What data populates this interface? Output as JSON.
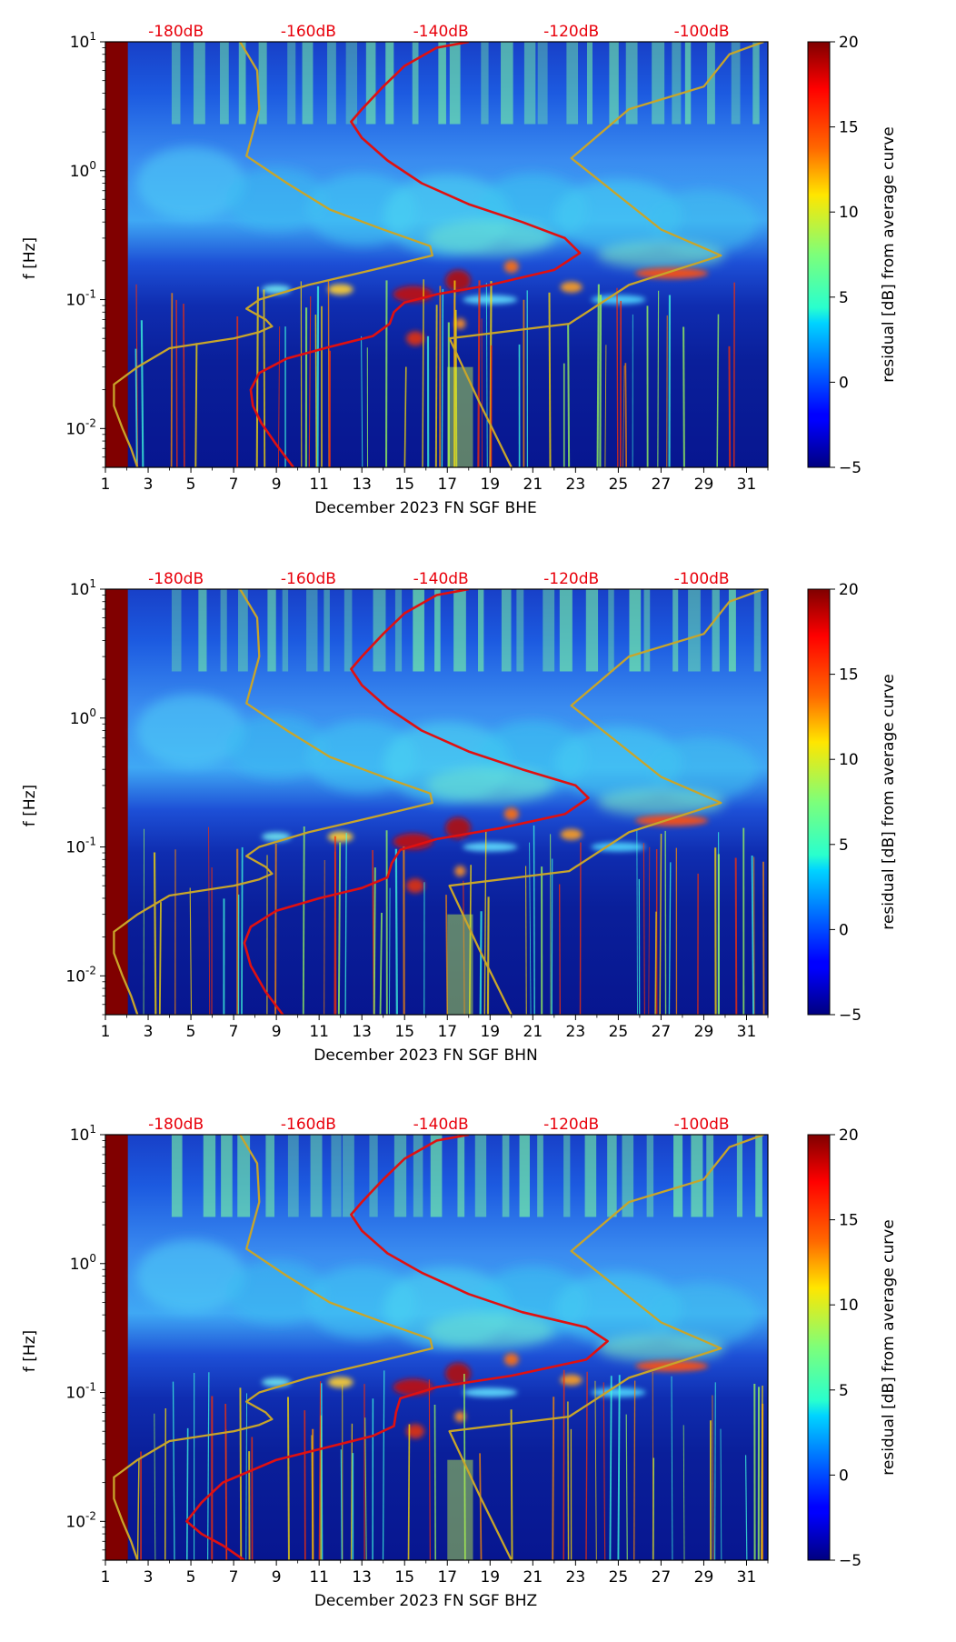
{
  "figure": {
    "xlim": [
      1,
      32
    ],
    "x_ticks": [
      1,
      3,
      5,
      7,
      9,
      11,
      13,
      15,
      17,
      19,
      21,
      23,
      25,
      27,
      29,
      31
    ],
    "y_ticks": [
      {
        "exp": "-2",
        "value": 0.01
      },
      {
        "exp": "-1",
        "value": 0.1
      },
      {
        "exp": "0",
        "value": 1
      },
      {
        "exp": "1",
        "value": 10
      }
    ],
    "y_tick_base": "10",
    "ylim": [
      0.005,
      10
    ],
    "db_labels": [
      "-180dB",
      "-160dB",
      "-140dB",
      "-120dB",
      "-100dB"
    ],
    "db_label_colour": "#e8000b"
  },
  "chart_data": [
    {
      "type": "heatmap",
      "title": "",
      "xlabel": "December 2023 FN SGF  BHE",
      "ylabel": "f [Hz]",
      "colorbar_label": "residual [dB] from average curve",
      "colorbar_range": [
        -5,
        20
      ],
      "colorbar_ticks": [
        "−5",
        "0",
        "5",
        "10",
        "15",
        "20"
      ],
      "series": [
        {
          "name": "median PSD (red)",
          "colour": "#e01010",
          "points": [
            [
              9.8,
              0.005
            ],
            [
              9,
              0.0075
            ],
            [
              8.3,
              0.011
            ],
            [
              7.9,
              0.015
            ],
            [
              7.8,
              0.02
            ],
            [
              8.2,
              0.027
            ],
            [
              9.5,
              0.035
            ],
            [
              11.5,
              0.043
            ],
            [
              13.5,
              0.052
            ],
            [
              14.3,
              0.065
            ],
            [
              14.5,
              0.08
            ],
            [
              15,
              0.095
            ],
            [
              16.5,
              0.11
            ],
            [
              19,
              0.13
            ],
            [
              22,
              0.17
            ],
            [
              23.2,
              0.23
            ],
            [
              22.5,
              0.3
            ],
            [
              20.5,
              0.4
            ],
            [
              18,
              0.55
            ],
            [
              15.8,
              0.8
            ],
            [
              14.2,
              1.2
            ],
            [
              13,
              1.8
            ],
            [
              12.5,
              2.4
            ],
            [
              13,
              3
            ],
            [
              14,
              4.5
            ],
            [
              15,
              6.5
            ],
            [
              16.5,
              9
            ],
            [
              18,
              10
            ]
          ]
        },
        {
          "name": "NLNM/NHNM model (gold)",
          "colour": "#c8a52a",
          "points": [
            [
              2.5,
              0.005
            ],
            [
              2.2,
              0.007
            ],
            [
              1.8,
              0.01
            ],
            [
              1.4,
              0.015
            ],
            [
              1.4,
              0.022
            ],
            [
              2.5,
              0.03
            ],
            [
              4,
              0.042
            ],
            [
              7,
              0.05
            ],
            [
              8.2,
              0.056
            ],
            [
              8.8,
              0.062
            ],
            [
              8.5,
              0.07
            ],
            [
              7.6,
              0.085
            ],
            [
              8.2,
              0.1
            ],
            [
              10.5,
              0.13
            ],
            [
              13.5,
              0.17
            ],
            [
              16.3,
              0.22
            ],
            [
              16.2,
              0.26
            ],
            [
              14,
              0.35
            ],
            [
              11.5,
              0.5
            ],
            [
              9.5,
              0.8
            ],
            [
              7.6,
              1.3
            ],
            [
              8.2,
              3
            ],
            [
              8.1,
              6
            ],
            [
              7.3,
              10
            ]
          ]
        },
        {
          "name": "NHNM upper (gold)",
          "colour": "#c8a52a",
          "points": [
            [
              20,
              0.005
            ],
            [
              18.5,
              0.016
            ],
            [
              17.1,
              0.05
            ],
            [
              22.7,
              0.065
            ],
            [
              25.5,
              0.13
            ],
            [
              29.8,
              0.22
            ],
            [
              27,
              0.35
            ],
            [
              22.8,
              1.25
            ],
            [
              25.5,
              3
            ],
            [
              29,
              4.5
            ],
            [
              30.2,
              8
            ],
            [
              31.8,
              10
            ]
          ]
        }
      ]
    },
    {
      "type": "heatmap",
      "title": "",
      "xlabel": "December 2023 FN SGF  BHN",
      "ylabel": "f [Hz]",
      "colorbar_label": "residual [dB] from average curve",
      "colorbar_range": [
        -5,
        20
      ],
      "colorbar_ticks": [
        "−5",
        "0",
        "5",
        "10",
        "15",
        "20"
      ],
      "series": [
        {
          "name": "median PSD (red)",
          "colour": "#e01010",
          "points": [
            [
              9.3,
              0.005
            ],
            [
              8.5,
              0.0075
            ],
            [
              7.8,
              0.012
            ],
            [
              7.5,
              0.018
            ],
            [
              7.8,
              0.024
            ],
            [
              9,
              0.032
            ],
            [
              11,
              0.04
            ],
            [
              13,
              0.048
            ],
            [
              14.2,
              0.058
            ],
            [
              14.4,
              0.075
            ],
            [
              14.8,
              0.095
            ],
            [
              16.5,
              0.115
            ],
            [
              19.5,
              0.14
            ],
            [
              22.5,
              0.18
            ],
            [
              23.6,
              0.24
            ],
            [
              23,
              0.3
            ],
            [
              20.5,
              0.4
            ],
            [
              18,
              0.55
            ],
            [
              15.8,
              0.8
            ],
            [
              14.2,
              1.2
            ],
            [
              13,
              1.8
            ],
            [
              12.5,
              2.4
            ],
            [
              13,
              3
            ],
            [
              14,
              4.5
            ],
            [
              15,
              6.5
            ],
            [
              16.5,
              9
            ],
            [
              18,
              10
            ]
          ]
        },
        {
          "name": "NLNM/NHNM model (gold)",
          "colour": "#c8a52a",
          "points": [
            [
              2.5,
              0.005
            ],
            [
              2.2,
              0.007
            ],
            [
              1.8,
              0.01
            ],
            [
              1.4,
              0.015
            ],
            [
              1.4,
              0.022
            ],
            [
              2.5,
              0.03
            ],
            [
              4,
              0.042
            ],
            [
              7,
              0.05
            ],
            [
              8.2,
              0.056
            ],
            [
              8.8,
              0.062
            ],
            [
              8.5,
              0.07
            ],
            [
              7.6,
              0.085
            ],
            [
              8.2,
              0.1
            ],
            [
              10.5,
              0.13
            ],
            [
              13.5,
              0.17
            ],
            [
              16.3,
              0.22
            ],
            [
              16.2,
              0.26
            ],
            [
              14,
              0.35
            ],
            [
              11.5,
              0.5
            ],
            [
              9.5,
              0.8
            ],
            [
              7.6,
              1.3
            ],
            [
              8.2,
              3
            ],
            [
              8.1,
              6
            ],
            [
              7.3,
              10
            ]
          ]
        },
        {
          "name": "NHNM upper (gold)",
          "colour": "#c8a52a",
          "points": [
            [
              20,
              0.005
            ],
            [
              18.5,
              0.016
            ],
            [
              17.1,
              0.05
            ],
            [
              22.7,
              0.065
            ],
            [
              25.5,
              0.13
            ],
            [
              29.8,
              0.22
            ],
            [
              27,
              0.35
            ],
            [
              22.8,
              1.25
            ],
            [
              25.5,
              3
            ],
            [
              29,
              4.5
            ],
            [
              30.2,
              8
            ],
            [
              31.8,
              10
            ]
          ]
        }
      ]
    },
    {
      "type": "heatmap",
      "title": "",
      "xlabel": "December 2023 FN SGF  BHZ",
      "ylabel": "f [Hz]",
      "colorbar_label": "residual [dB] from average curve",
      "colorbar_range": [
        -5,
        20
      ],
      "colorbar_ticks": [
        "−5",
        "0",
        "5",
        "10",
        "15",
        "20"
      ],
      "series": [
        {
          "name": "median PSD (red)",
          "colour": "#e01010",
          "points": [
            [
              7.5,
              0.005
            ],
            [
              6.5,
              0.0065
            ],
            [
              5.5,
              0.008
            ],
            [
              4.8,
              0.01
            ],
            [
              5.5,
              0.014
            ],
            [
              6.5,
              0.02
            ],
            [
              9,
              0.03
            ],
            [
              11.5,
              0.038
            ],
            [
              13.5,
              0.046
            ],
            [
              14.5,
              0.055
            ],
            [
              14.6,
              0.07
            ],
            [
              14.8,
              0.09
            ],
            [
              16.5,
              0.11
            ],
            [
              20,
              0.135
            ],
            [
              23.5,
              0.18
            ],
            [
              24.5,
              0.25
            ],
            [
              23.5,
              0.32
            ],
            [
              20.5,
              0.42
            ],
            [
              18,
              0.58
            ],
            [
              15.8,
              0.85
            ],
            [
              14.2,
              1.2
            ],
            [
              13,
              1.8
            ],
            [
              12.5,
              2.4
            ],
            [
              13,
              3
            ],
            [
              14,
              4.5
            ],
            [
              15,
              6.5
            ],
            [
              16.5,
              9
            ],
            [
              18,
              10
            ]
          ]
        },
        {
          "name": "NLNM/NHNM model (gold)",
          "colour": "#c8a52a",
          "points": [
            [
              2.5,
              0.005
            ],
            [
              2.2,
              0.007
            ],
            [
              1.8,
              0.01
            ],
            [
              1.4,
              0.015
            ],
            [
              1.4,
              0.022
            ],
            [
              2.5,
              0.03
            ],
            [
              4,
              0.042
            ],
            [
              7,
              0.05
            ],
            [
              8.2,
              0.056
            ],
            [
              8.8,
              0.062
            ],
            [
              8.5,
              0.07
            ],
            [
              7.6,
              0.085
            ],
            [
              8.2,
              0.1
            ],
            [
              10.5,
              0.13
            ],
            [
              13.5,
              0.17
            ],
            [
              16.3,
              0.22
            ],
            [
              16.2,
              0.26
            ],
            [
              14,
              0.35
            ],
            [
              11.5,
              0.5
            ],
            [
              9.5,
              0.8
            ],
            [
              7.6,
              1.3
            ],
            [
              8.2,
              3
            ],
            [
              8.1,
              6
            ],
            [
              7.3,
              10
            ]
          ]
        },
        {
          "name": "NHNM upper (gold)",
          "colour": "#c8a52a",
          "points": [
            [
              20,
              0.005
            ],
            [
              18.5,
              0.016
            ],
            [
              17.1,
              0.05
            ],
            [
              22.7,
              0.065
            ],
            [
              25.5,
              0.13
            ],
            [
              29.8,
              0.22
            ],
            [
              27,
              0.35
            ],
            [
              22.8,
              1.25
            ],
            [
              25.5,
              3
            ],
            [
              29,
              4.5
            ],
            [
              30.2,
              8
            ],
            [
              31.8,
              10
            ]
          ]
        }
      ]
    }
  ]
}
